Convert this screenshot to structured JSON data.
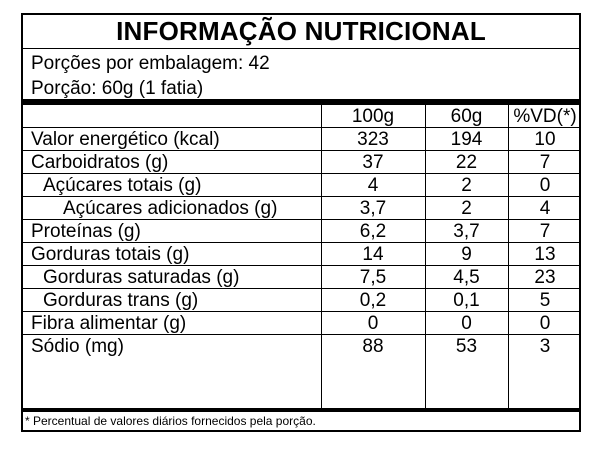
{
  "title": "INFORMAÇÃO NUTRICIONAL",
  "servings": "Porções por embalagem: 42",
  "portion": "Porção: 60g (1 fatia)",
  "columns": [
    "100g",
    "60g",
    "%VD(*)"
  ],
  "rows": [
    {
      "label": "Valor energético (kcal)",
      "v100": "323",
      "v60": "194",
      "vd": "10"
    },
    {
      "label": "Carboidratos (g)",
      "v100": "37",
      "v60": "22",
      "vd": "7"
    },
    {
      "label": "Açúcares totais (g)",
      "v100": "4",
      "v60": "2",
      "vd": "0"
    },
    {
      "label": "Açúcares adicionados (g)",
      "v100": "3,7",
      "v60": "2",
      "vd": "4"
    },
    {
      "label": "Proteínas (g)",
      "v100": "6,2",
      "v60": "3,7",
      "vd": "7"
    },
    {
      "label": "Gorduras totais (g)",
      "v100": "14",
      "v60": "9",
      "vd": "13"
    },
    {
      "label": "Gorduras saturadas (g)",
      "v100": "7,5",
      "v60": "4,5",
      "vd": "23"
    },
    {
      "label": "Gorduras trans (g)",
      "v100": "0,2",
      "v60": "0,1",
      "vd": "5"
    },
    {
      "label": "Fibra alimentar (g)",
      "v100": "0",
      "v60": "0",
      "vd": "0"
    },
    {
      "label": "Sódio (mg)",
      "v100": "88",
      "v60": "53",
      "vd": "3"
    }
  ],
  "footnote": "* Percentual de valores diários fornecidos pela porção."
}
